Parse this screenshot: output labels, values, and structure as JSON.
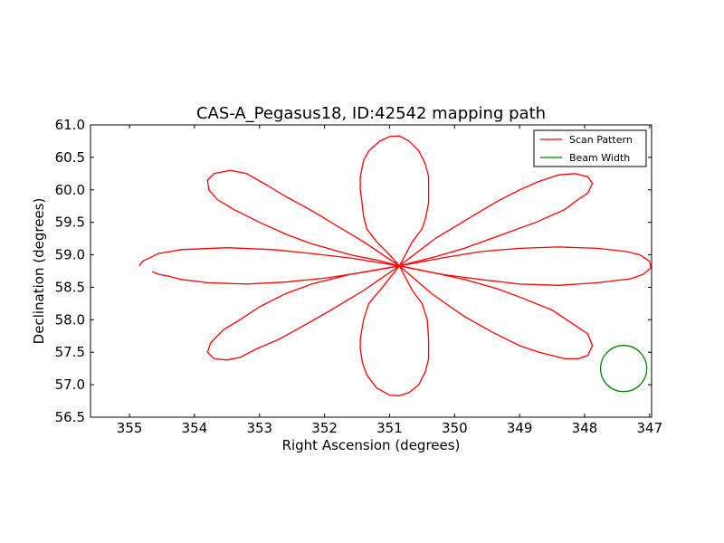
{
  "chart_data": {
    "type": "line",
    "title": "CAS-A_Pegasus18, ID:42542 mapping path",
    "xlabel": "Right Ascension (degrees)",
    "ylabel": "Declination (degrees)",
    "xlim": [
      355.6,
      346.97
    ],
    "ylim": [
      56.5,
      61.0
    ],
    "x_reversed": true,
    "xticks": [
      355,
      354,
      353,
      352,
      351,
      350,
      349,
      348,
      347
    ],
    "yticks": [
      "56.5",
      "57.0",
      "57.5",
      "58.0",
      "58.5",
      "59.0",
      "59.5",
      "60.0",
      "60.5",
      "61.0"
    ],
    "grid": false,
    "legend_position": "top-right",
    "center": [
      350.85,
      58.83
    ],
    "series": [
      {
        "name": "Scan Pattern",
        "color": "#ff0000",
        "petals": [
          [
            [
              350.85,
              58.83
            ],
            [
              350.65,
              59.2
            ],
            [
              350.5,
              59.4
            ],
            [
              350.45,
              59.55
            ],
            [
              350.4,
              59.8
            ],
            [
              350.4,
              60.2
            ],
            [
              350.45,
              60.4
            ],
            [
              350.55,
              60.6
            ],
            [
              350.7,
              60.75
            ],
            [
              350.85,
              60.83
            ],
            [
              351.0,
              60.82
            ],
            [
              351.15,
              60.75
            ],
            [
              351.32,
              60.6
            ],
            [
              351.4,
              60.45
            ],
            [
              351.45,
              60.2
            ],
            [
              351.45,
              60.0
            ],
            [
              351.43,
              59.85
            ],
            [
              351.4,
              59.6
            ],
            [
              351.35,
              59.4
            ],
            [
              351.2,
              59.2
            ],
            [
              351.0,
              59.0
            ],
            [
              350.85,
              58.83
            ]
          ],
          [
            [
              350.85,
              58.83
            ],
            [
              350.65,
              58.45
            ],
            [
              350.5,
              58.25
            ],
            [
              350.42,
              58.0
            ],
            [
              350.4,
              57.7
            ],
            [
              350.4,
              57.4
            ],
            [
              350.45,
              57.2
            ],
            [
              350.55,
              57.0
            ],
            [
              350.7,
              56.88
            ],
            [
              350.85,
              56.83
            ],
            [
              351.0,
              56.84
            ],
            [
              351.2,
              56.95
            ],
            [
              351.35,
              57.15
            ],
            [
              351.42,
              57.35
            ],
            [
              351.45,
              57.55
            ],
            [
              351.45,
              57.7
            ],
            [
              351.4,
              58.0
            ],
            [
              351.32,
              58.25
            ],
            [
              351.15,
              58.45
            ],
            [
              350.85,
              58.83
            ]
          ],
          [
            [
              350.85,
              58.83
            ],
            [
              350.3,
              59.25
            ],
            [
              349.8,
              59.55
            ],
            [
              349.35,
              59.82
            ],
            [
              349.0,
              60.0
            ],
            [
              348.7,
              60.13
            ],
            [
              348.4,
              60.23
            ],
            [
              348.15,
              60.25
            ],
            [
              347.95,
              60.2
            ],
            [
              347.88,
              60.1
            ],
            [
              347.95,
              59.95
            ],
            [
              348.1,
              59.85
            ],
            [
              348.3,
              59.7
            ],
            [
              348.75,
              59.5
            ],
            [
              349.3,
              59.3
            ],
            [
              349.85,
              59.1
            ],
            [
              350.3,
              58.97
            ],
            [
              350.85,
              58.83
            ]
          ],
          [
            [
              350.85,
              58.83
            ],
            [
              351.4,
              59.2
            ],
            [
              351.85,
              59.47
            ],
            [
              352.2,
              59.68
            ],
            [
              352.6,
              59.9
            ],
            [
              352.9,
              60.08
            ],
            [
              353.2,
              60.25
            ],
            [
              353.45,
              60.3
            ],
            [
              353.7,
              60.25
            ],
            [
              353.8,
              60.15
            ],
            [
              353.78,
              60.0
            ],
            [
              353.65,
              59.85
            ],
            [
              353.4,
              59.7
            ],
            [
              353.0,
              59.5
            ],
            [
              352.6,
              59.32
            ],
            [
              352.2,
              59.17
            ],
            [
              351.6,
              59.0
            ],
            [
              351.2,
              58.92
            ],
            [
              350.85,
              58.83
            ]
          ],
          [
            [
              350.85,
              58.83
            ],
            [
              350.35,
              58.4
            ],
            [
              349.85,
              58.05
            ],
            [
              349.4,
              57.8
            ],
            [
              349.0,
              57.6
            ],
            [
              348.7,
              57.5
            ],
            [
              348.3,
              57.4
            ],
            [
              348.1,
              57.4
            ],
            [
              347.95,
              57.45
            ],
            [
              347.88,
              57.6
            ],
            [
              347.95,
              57.78
            ],
            [
              348.2,
              57.95
            ],
            [
              348.5,
              58.15
            ],
            [
              349.0,
              58.35
            ],
            [
              349.35,
              58.48
            ],
            [
              349.85,
              58.62
            ],
            [
              350.3,
              58.72
            ],
            [
              350.85,
              58.83
            ]
          ],
          [
            [
              350.85,
              58.83
            ],
            [
              351.4,
              58.45
            ],
            [
              351.85,
              58.18
            ],
            [
              352.25,
              57.95
            ],
            [
              352.7,
              57.7
            ],
            [
              353.05,
              57.55
            ],
            [
              353.3,
              57.42
            ],
            [
              353.5,
              57.38
            ],
            [
              353.7,
              57.4
            ],
            [
              353.8,
              57.5
            ],
            [
              353.75,
              57.65
            ],
            [
              353.55,
              57.85
            ],
            [
              353.3,
              58.0
            ],
            [
              353.0,
              58.2
            ],
            [
              352.6,
              58.4
            ],
            [
              352.2,
              58.55
            ],
            [
              351.6,
              58.7
            ],
            [
              351.2,
              58.77
            ],
            [
              350.85,
              58.83
            ]
          ],
          [
            [
              350.85,
              58.83
            ],
            [
              350.2,
              58.95
            ],
            [
              349.6,
              59.05
            ],
            [
              349.0,
              59.1
            ],
            [
              348.4,
              59.12
            ],
            [
              347.8,
              59.1
            ],
            [
              347.35,
              59.05
            ],
            [
              347.15,
              59.0
            ],
            [
              347.0,
              58.9
            ],
            [
              346.98,
              58.8
            ],
            [
              347.1,
              58.7
            ],
            [
              347.3,
              58.63
            ],
            [
              347.8,
              58.57
            ],
            [
              348.4,
              58.53
            ],
            [
              349.0,
              58.55
            ],
            [
              349.6,
              58.62
            ],
            [
              350.2,
              58.7
            ],
            [
              350.85,
              58.83
            ]
          ],
          [
            [
              350.85,
              58.83
            ],
            [
              351.6,
              58.95
            ],
            [
              352.2,
              59.02
            ],
            [
              352.8,
              59.08
            ],
            [
              353.5,
              59.11
            ],
            [
              354.2,
              59.08
            ],
            [
              354.55,
              59.02
            ],
            [
              354.8,
              58.9
            ],
            [
              354.85,
              58.83
            ]
          ],
          [
            [
              354.65,
              58.74
            ],
            [
              354.55,
              58.7
            ],
            [
              354.4,
              58.67
            ],
            [
              354.2,
              58.62
            ],
            [
              353.8,
              58.57
            ],
            [
              353.2,
              58.55
            ],
            [
              352.6,
              58.58
            ],
            [
              352.0,
              58.64
            ],
            [
              351.4,
              58.73
            ],
            [
              350.85,
              58.83
            ]
          ]
        ]
      },
      {
        "name": "Beam Width",
        "color": "#008000",
        "center": [
          347.4,
          57.25
        ],
        "radius_deg": 0.355
      }
    ]
  }
}
